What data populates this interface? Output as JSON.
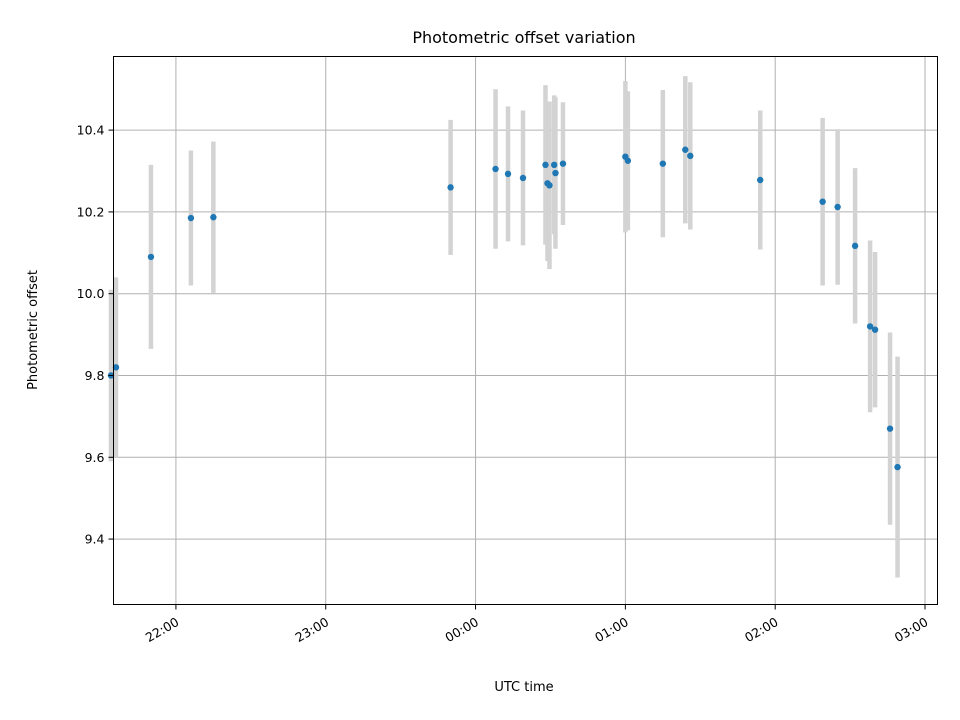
{
  "chart_data": {
    "type": "scatter",
    "title": "Photometric offset variation",
    "xlabel": "UTC time",
    "ylabel": "Photometric offset",
    "xlim": [
      "21:35",
      "03:05"
    ],
    "ylim": [
      9.24,
      10.58
    ],
    "x_ticks": [
      "22:00",
      "23:00",
      "00:00",
      "01:00",
      "02:00",
      "03:00"
    ],
    "y_ticks": [
      9.4,
      9.6,
      9.8,
      10.0,
      10.2,
      10.4
    ],
    "y_tick_labels": [
      "9.4",
      "9.6",
      "9.8",
      "10.0",
      "10.2",
      "10.4"
    ],
    "grid": true,
    "colors": {
      "point": "#1f77b4",
      "errorbar": "#d3d3d3",
      "grid": "#b0b0b0",
      "axes": "#000000"
    },
    "points": [
      {
        "x": "21:34",
        "y": 9.8,
        "err": 0.21
      },
      {
        "x": "21:36",
        "y": 9.82,
        "err": 0.22
      },
      {
        "x": "21:50",
        "y": 10.09,
        "err": 0.225
      },
      {
        "x": "22:06",
        "y": 10.185,
        "err": 0.165
      },
      {
        "x": "22:15",
        "y": 10.187,
        "err": 0.185
      },
      {
        "x": "23:50",
        "y": 10.26,
        "err": 0.165
      },
      {
        "x": "00:08",
        "y": 10.305,
        "err": 0.195
      },
      {
        "x": "00:13",
        "y": 10.293,
        "err": 0.165
      },
      {
        "x": "00:19",
        "y": 10.283,
        "err": 0.165
      },
      {
        "x": "00:28",
        "y": 10.315,
        "err": 0.195
      },
      {
        "x": "00:28.8",
        "y": 10.27,
        "err": 0.19
      },
      {
        "x": "00:29.6",
        "y": 10.265,
        "err": 0.205
      },
      {
        "x": "00:31.5",
        "y": 10.315,
        "err": 0.17
      },
      {
        "x": "00:32",
        "y": 10.295,
        "err": 0.185
      },
      {
        "x": "00:35",
        "y": 10.318,
        "err": 0.15
      },
      {
        "x": "01:00",
        "y": 10.335,
        "err": 0.185
      },
      {
        "x": "01:01",
        "y": 10.325,
        "err": 0.17
      },
      {
        "x": "01:15",
        "y": 10.318,
        "err": 0.18
      },
      {
        "x": "01:24",
        "y": 10.352,
        "err": 0.18
      },
      {
        "x": "01:26",
        "y": 10.337,
        "err": 0.18
      },
      {
        "x": "01:54",
        "y": 10.278,
        "err": 0.17
      },
      {
        "x": "02:19",
        "y": 10.225,
        "err": 0.205
      },
      {
        "x": "02:25",
        "y": 10.212,
        "err": 0.19
      },
      {
        "x": "02:32",
        "y": 10.117,
        "err": 0.19
      },
      {
        "x": "02:38",
        "y": 9.92,
        "err": 0.21
      },
      {
        "x": "02:40",
        "y": 9.912,
        "err": 0.19
      },
      {
        "x": "02:46",
        "y": 9.67,
        "err": 0.235
      },
      {
        "x": "02:49",
        "y": 9.576,
        "err": 0.27
      }
    ]
  }
}
